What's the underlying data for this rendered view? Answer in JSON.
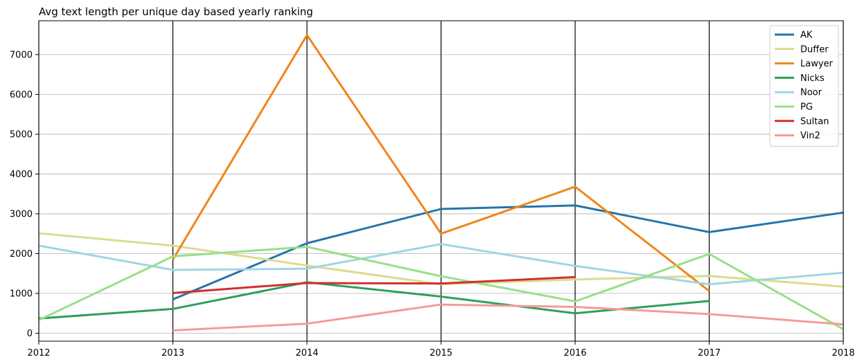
{
  "chart_data": {
    "type": "line",
    "title": "Avg text length per unique day based yearly ranking",
    "xlabel": "",
    "ylabel": "",
    "x": [
      2012,
      2013,
      2014,
      2015,
      2016,
      2017,
      2018
    ],
    "x_tick_labels": [
      "2012",
      "2013",
      "2014",
      "2015",
      "2016",
      "2017",
      "2018"
    ],
    "xlim": [
      2012,
      2018
    ],
    "ylim": [
      -200,
      7850
    ],
    "y_ticks": [
      0,
      1000,
      2000,
      3000,
      4000,
      5000,
      6000,
      7000
    ],
    "y_tick_labels": [
      "0",
      "1000",
      "2000",
      "3000",
      "4000",
      "5000",
      "6000",
      "7000"
    ],
    "grid": "horizontal lines at y ticks; vertical black lines at x ticks",
    "legend_position": "top-right",
    "series": [
      {
        "name": "AK",
        "color": "#2574a9",
        "values": [
          null,
          850,
          2260,
          3120,
          3210,
          2540,
          3030
        ]
      },
      {
        "name": "Duffer",
        "color": "#dbdb8d",
        "values": [
          2510,
          2200,
          1700,
          1230,
          1350,
          1440,
          1170
        ]
      },
      {
        "name": "Lawyer",
        "color": "#f0851a",
        "values": [
          null,
          1850,
          7490,
          2500,
          3680,
          1060,
          null
        ]
      },
      {
        "name": "Nicks",
        "color": "#2ca05a",
        "values": [
          370,
          610,
          1280,
          920,
          500,
          810,
          null
        ]
      },
      {
        "name": "Noor",
        "color": "#9fd6e1",
        "values": [
          2200,
          1590,
          1620,
          2240,
          1690,
          1230,
          1520
        ]
      },
      {
        "name": "PG",
        "color": "#98df8a",
        "values": [
          330,
          1930,
          2170,
          1430,
          800,
          1990,
          100
        ]
      },
      {
        "name": "Sultan",
        "color": "#d03030",
        "values": [
          null,
          1010,
          1260,
          1250,
          1410,
          null,
          null
        ]
      },
      {
        "name": "Vin2",
        "color": "#f59a9a",
        "values": [
          null,
          70,
          240,
          720,
          660,
          480,
          220
        ]
      }
    ]
  }
}
